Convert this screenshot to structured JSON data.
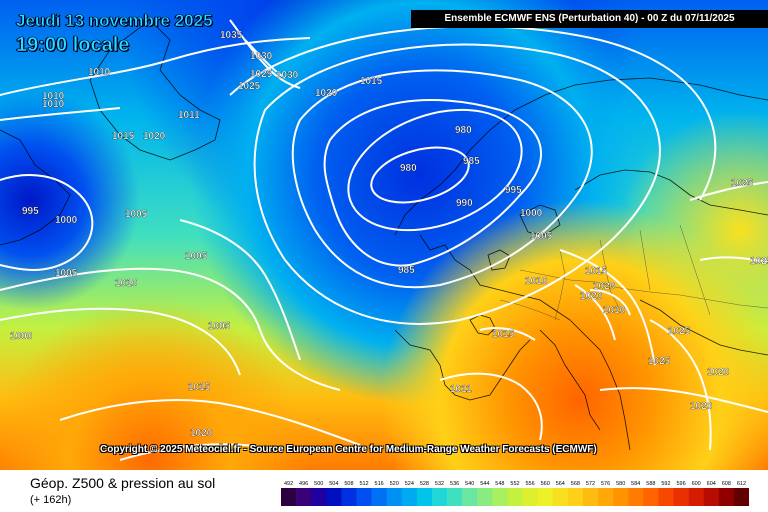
{
  "header": {
    "date_line": "Jeudi 13 novembre 2025",
    "time_line": "19:00 locale",
    "run_info": "Ensemble ECMWF ENS  (Perturbation 40)  -  00 Z du 07/11/2025"
  },
  "copyright": "Copyright © 2025 Meteociel.fr - Source European Centre for Medium-Range Weather Forecasts (ECMWF)",
  "footer": {
    "title": "Géop. Z500 & pression au sol",
    "subtitle": "(+ 162h)"
  },
  "legend": {
    "values": [
      "492",
      "496",
      "500",
      "504",
      "508",
      "512",
      "516",
      "520",
      "524",
      "528",
      "532",
      "536",
      "540",
      "544",
      "548",
      "552",
      "556",
      "560",
      "564",
      "568",
      "572",
      "576",
      "580",
      "584",
      "588",
      "592",
      "596",
      "600",
      "604",
      "608",
      "612"
    ],
    "colors": [
      "#2a0040",
      "#3a0078",
      "#2000a0",
      "#0010c0",
      "#0030e0",
      "#0050f0",
      "#0070f5",
      "#0090f5",
      "#00aaf0",
      "#00c4ea",
      "#20d6d8",
      "#40dfc0",
      "#6ae6a0",
      "#8aec80",
      "#a8f060",
      "#c4f040",
      "#dcf030",
      "#eef028",
      "#f8e020",
      "#ffd018",
      "#ffbc10",
      "#ffa808",
      "#ff9400",
      "#ff7c00",
      "#ff6400",
      "#f84800",
      "#e83000",
      "#d41c00",
      "#b80c00",
      "#900000",
      "#600000"
    ]
  },
  "pressure_labels": [
    "1035",
    "1030",
    "1025",
    "1030",
    "1025",
    "1015",
    "1010",
    "1010",
    "1010",
    "1015",
    "1020",
    "1011",
    "1020",
    "980",
    "985",
    "980",
    "995",
    "990",
    "985",
    "1000",
    "1005",
    "995",
    "1000",
    "1005",
    "1005",
    "1010",
    "1005",
    "1000",
    "1005",
    "1015",
    "1020",
    "1010",
    "1015",
    "1020",
    "1020",
    "1010",
    "1025",
    "1025",
    "1025",
    "1025",
    "1020",
    "1011",
    "1020",
    "1015"
  ]
}
